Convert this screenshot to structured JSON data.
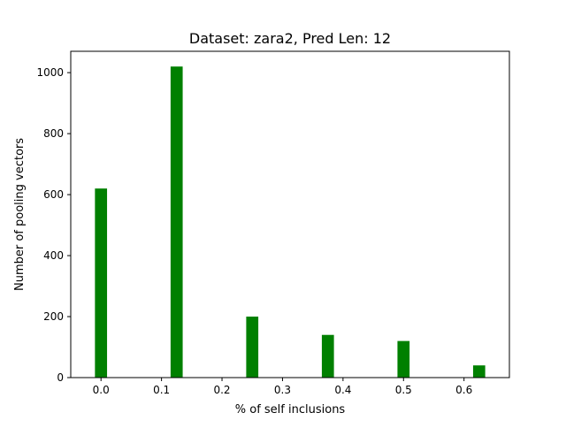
{
  "chart_data": {
    "type": "bar",
    "title": "Dataset: zara2, Pred Len: 12",
    "xlabel": "% of self inclusions",
    "ylabel": "Number of pooling vectors",
    "x": [
      0.0,
      0.125,
      0.25,
      0.375,
      0.5,
      0.625
    ],
    "values": [
      620,
      1020,
      200,
      140,
      120,
      40
    ],
    "bar_color": "#008000",
    "xlim": [
      -0.05,
      0.675
    ],
    "ylim": [
      0,
      1070
    ],
    "xticks": [
      0.0,
      0.1,
      0.2,
      0.3,
      0.4,
      0.5,
      0.6
    ],
    "xtick_labels": [
      "0.0",
      "0.1",
      "0.2",
      "0.3",
      "0.4",
      "0.5",
      "0.6"
    ],
    "yticks": [
      0,
      200,
      400,
      600,
      800,
      1000
    ],
    "ytick_labels": [
      "0",
      "200",
      "400",
      "600",
      "800",
      "1000"
    ],
    "grid": false,
    "legend": false
  }
}
